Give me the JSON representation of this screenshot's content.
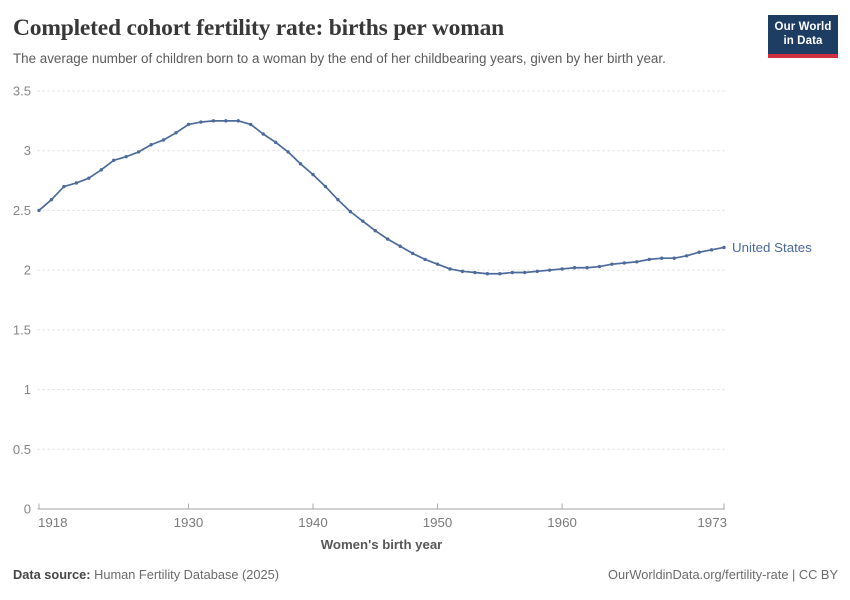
{
  "header": {
    "title": "Completed cohort fertility rate: births per woman",
    "subtitle": "The average number of children born to a woman by the end of her childbearing years, given by her birth year.",
    "logo_line1": "Our World",
    "logo_line2": "in Data"
  },
  "colors": {
    "navy": "#1d3d63",
    "red": "#d12f3f",
    "series_blue": "#4c6a9c"
  },
  "chart_data": {
    "type": "line",
    "title": "Completed cohort fertility rate: births per woman",
    "xlabel": "Women's birth year",
    "ylabel": "",
    "xlim": [
      1918,
      1973
    ],
    "ylim": [
      0,
      3.5
    ],
    "x_ticks": [
      1918,
      1930,
      1940,
      1950,
      1960,
      1973
    ],
    "y_ticks": [
      0,
      0.5,
      1,
      1.5,
      2,
      2.5,
      3,
      3.5
    ],
    "grid": "horizontal-dashed",
    "legend_position": "end-of-line-label",
    "series": [
      {
        "name": "United States",
        "color": "#4c6a9c",
        "x": [
          1918,
          1919,
          1920,
          1921,
          1922,
          1923,
          1924,
          1925,
          1926,
          1927,
          1928,
          1929,
          1930,
          1931,
          1932,
          1933,
          1934,
          1935,
          1936,
          1937,
          1938,
          1939,
          1940,
          1941,
          1942,
          1943,
          1944,
          1945,
          1946,
          1947,
          1948,
          1949,
          1950,
          1951,
          1952,
          1953,
          1954,
          1955,
          1956,
          1957,
          1958,
          1959,
          1960,
          1961,
          1962,
          1963,
          1964,
          1965,
          1966,
          1967,
          1968,
          1969,
          1970,
          1971,
          1972,
          1973
        ],
        "values": [
          2.5,
          2.59,
          2.7,
          2.73,
          2.77,
          2.84,
          2.92,
          2.95,
          2.99,
          3.05,
          3.09,
          3.15,
          3.22,
          3.24,
          3.25,
          3.25,
          3.25,
          3.22,
          3.14,
          3.07,
          2.99,
          2.89,
          2.8,
          2.7,
          2.59,
          2.49,
          2.41,
          2.33,
          2.26,
          2.2,
          2.14,
          2.09,
          2.05,
          2.01,
          1.99,
          1.98,
          1.97,
          1.97,
          1.98,
          1.98,
          1.99,
          2.0,
          2.01,
          2.02,
          2.02,
          2.03,
          2.05,
          2.06,
          2.07,
          2.09,
          2.1,
          2.1,
          2.12,
          2.15,
          2.17,
          2.19
        ]
      }
    ]
  },
  "footer": {
    "source_label": "Data source:",
    "source_value": " Human Fertility Database (2025)",
    "rights": "OurWorldinData.org/fertility-rate | CC BY"
  }
}
